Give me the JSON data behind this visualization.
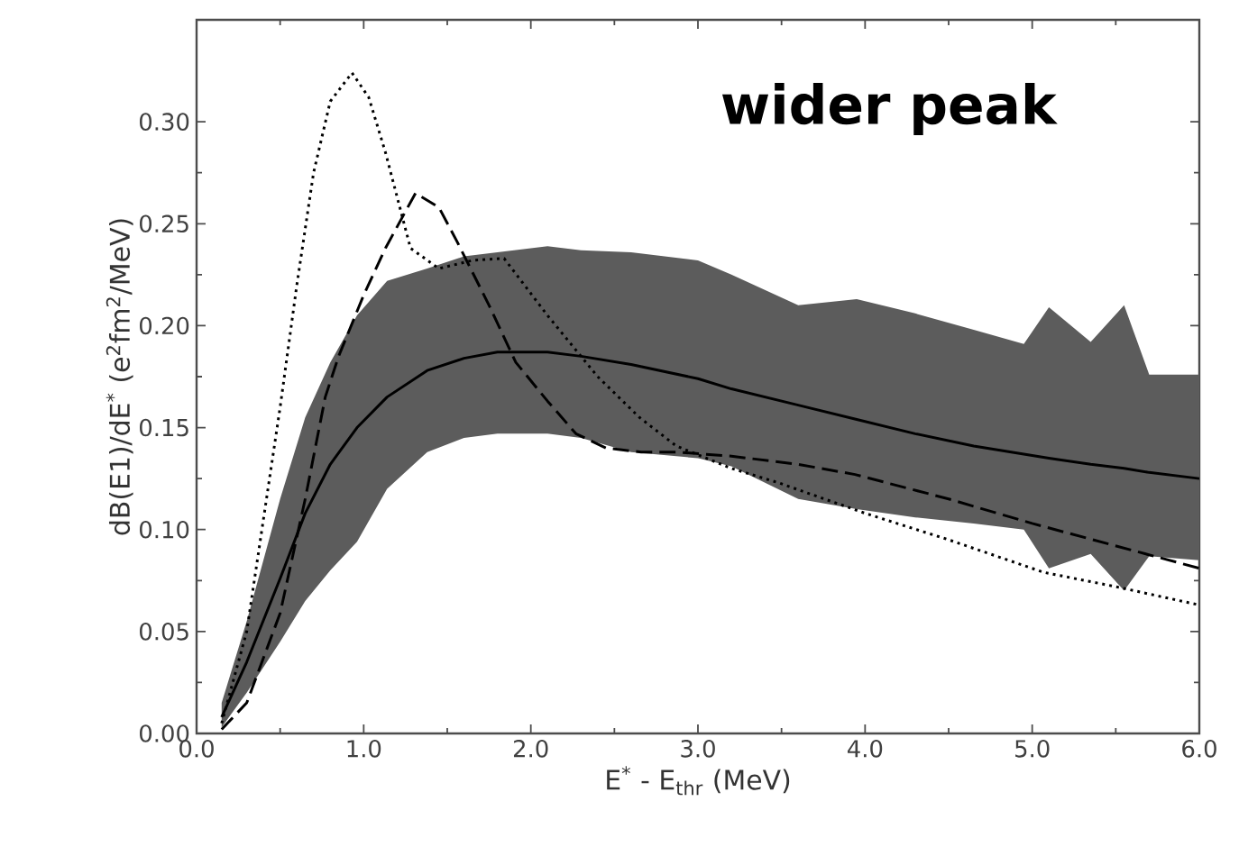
{
  "chart_data": {
    "type": "line",
    "xlabel": "E$^{*}$  -  E$_{thr}$  (MeV)",
    "ylabel": "dB(E1)/dE$^{*}$  (e$^{2}$fm$^{2}$/MeV)",
    "annotations": [
      "wider peak"
    ],
    "xlim": [
      0,
      6
    ],
    "ylim": [
      0,
      0.35
    ],
    "xticks": [
      {
        "value": 0,
        "label": "0.0"
      },
      {
        "value": 1,
        "label": "1.0"
      },
      {
        "value": 2,
        "label": "2.0"
      },
      {
        "value": 3,
        "label": "3.0"
      },
      {
        "value": 4,
        "label": "4.0"
      },
      {
        "value": 5,
        "label": "5.0"
      },
      {
        "value": 6,
        "label": "6.0"
      }
    ],
    "yticks": [
      {
        "value": 0,
        "label": "0.00"
      },
      0.05,
      {
        "value": 0.1,
        "label": "0.10"
      },
      0.15,
      {
        "value": 0.2,
        "label": "0.20"
      },
      0.25,
      {
        "value": 0.3,
        "label": "0.30"
      }
    ],
    "grid": false,
    "series": [
      {
        "color": "#000000",
        "line_style": "solid",
        "x": [
          0.15,
          0.3,
          0.5,
          0.65,
          0.8,
          0.96,
          1.14,
          1.38,
          1.6,
          1.8,
          2.1,
          2.3,
          2.6,
          3.0,
          3.2,
          3.6,
          3.95,
          4.3,
          4.65,
          4.95,
          5.1,
          5.35,
          5.55,
          5.7,
          6.0
        ],
        "values": [
          0.008,
          0.035,
          0.076,
          0.108,
          0.132,
          0.15,
          0.165,
          0.178,
          0.184,
          0.187,
          0.187,
          0.185,
          0.181,
          0.174,
          0.169,
          0.161,
          0.154,
          0.147,
          0.141,
          0.137,
          0.135,
          0.132,
          0.13,
          0.128,
          0.125
        ],
        "upper": [
          0.015,
          0.055,
          0.115,
          0.155,
          0.182,
          0.205,
          0.222,
          0.228,
          0.234,
          0.236,
          0.239,
          0.237,
          0.236,
          0.232,
          0.225,
          0.21,
          0.213,
          0.206,
          0.198,
          0.191,
          0.209,
          0.192,
          0.21,
          0.176,
          0.176
        ],
        "lower": [
          0.003,
          0.02,
          0.045,
          0.065,
          0.08,
          0.094,
          0.12,
          0.138,
          0.145,
          0.147,
          0.147,
          0.145,
          0.138,
          0.135,
          0.131,
          0.115,
          0.11,
          0.106,
          0.103,
          0.1,
          0.081,
          0.088,
          0.07,
          0.087,
          0.085
        ]
      },
      {
        "color": "#000000",
        "line_style": "dashed",
        "x": [
          0.15,
          0.3,
          0.5,
          0.65,
          0.77,
          0.85,
          1.0,
          1.13,
          1.31,
          1.45,
          1.56,
          1.75,
          1.91,
          2.1,
          2.27,
          2.45,
          2.66,
          2.87,
          3.2,
          3.6,
          3.94,
          4.5,
          5.0,
          5.5,
          6.0
        ],
        "values": [
          0.002,
          0.015,
          0.059,
          0.115,
          0.165,
          0.185,
          0.215,
          0.238,
          0.265,
          0.258,
          0.241,
          0.21,
          0.182,
          0.163,
          0.147,
          0.14,
          0.138,
          0.138,
          0.136,
          0.132,
          0.127,
          0.115,
          0.103,
          0.092,
          0.081
        ]
      },
      {
        "color": "#000000",
        "line_style": "dotted",
        "x": [
          0.15,
          0.3,
          0.5,
          0.6,
          0.7,
          0.8,
          0.93,
          1.03,
          1.13,
          1.28,
          1.45,
          1.65,
          1.84,
          2.1,
          2.4,
          2.65,
          2.87,
          3.2,
          3.48,
          4.0,
          4.5,
          5.07,
          5.5,
          6.0
        ],
        "values": [
          0.005,
          0.05,
          0.16,
          0.22,
          0.275,
          0.31,
          0.324,
          0.312,
          0.285,
          0.238,
          0.228,
          0.232,
          0.233,
          0.205,
          0.175,
          0.155,
          0.141,
          0.13,
          0.123,
          0.108,
          0.095,
          0.079,
          0.072,
          0.063
        ]
      }
    ]
  }
}
